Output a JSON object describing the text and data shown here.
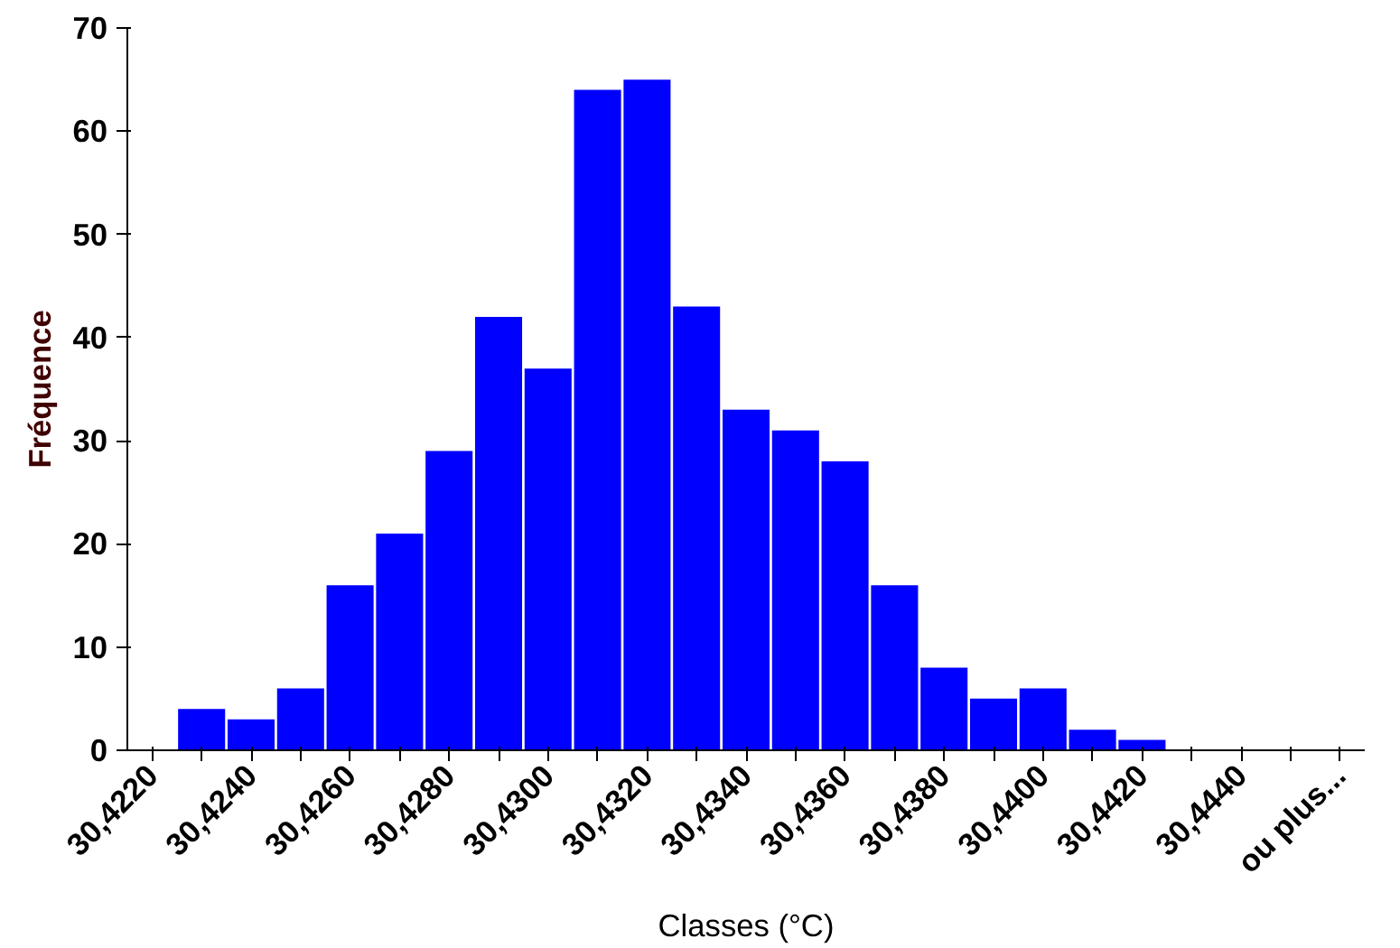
{
  "chart_data": {
    "type": "bar",
    "xlabel": "Classes (°C)",
    "ylabel": "Fréquence",
    "categories": [
      "30,4220",
      null,
      "30,4240",
      null,
      "30,4260",
      null,
      "30,4280",
      null,
      "30,4300",
      null,
      "30,4320",
      null,
      "30,4340",
      null,
      "30,4360",
      null,
      "30,4380",
      null,
      "30,4400",
      null,
      "30,4420",
      null,
      "30,4440",
      null,
      "ou plus..."
    ],
    "values": [
      0,
      4,
      3,
      6,
      16,
      21,
      29,
      42,
      37,
      64,
      65,
      43,
      33,
      31,
      28,
      16,
      8,
      5,
      6,
      2,
      1,
      0,
      0,
      0,
      0
    ],
    "color": "#0000ff",
    "ylim": [
      0,
      70
    ],
    "yticks": [
      0,
      10,
      20,
      30,
      40,
      50,
      60,
      70
    ],
    "grid": false
  }
}
